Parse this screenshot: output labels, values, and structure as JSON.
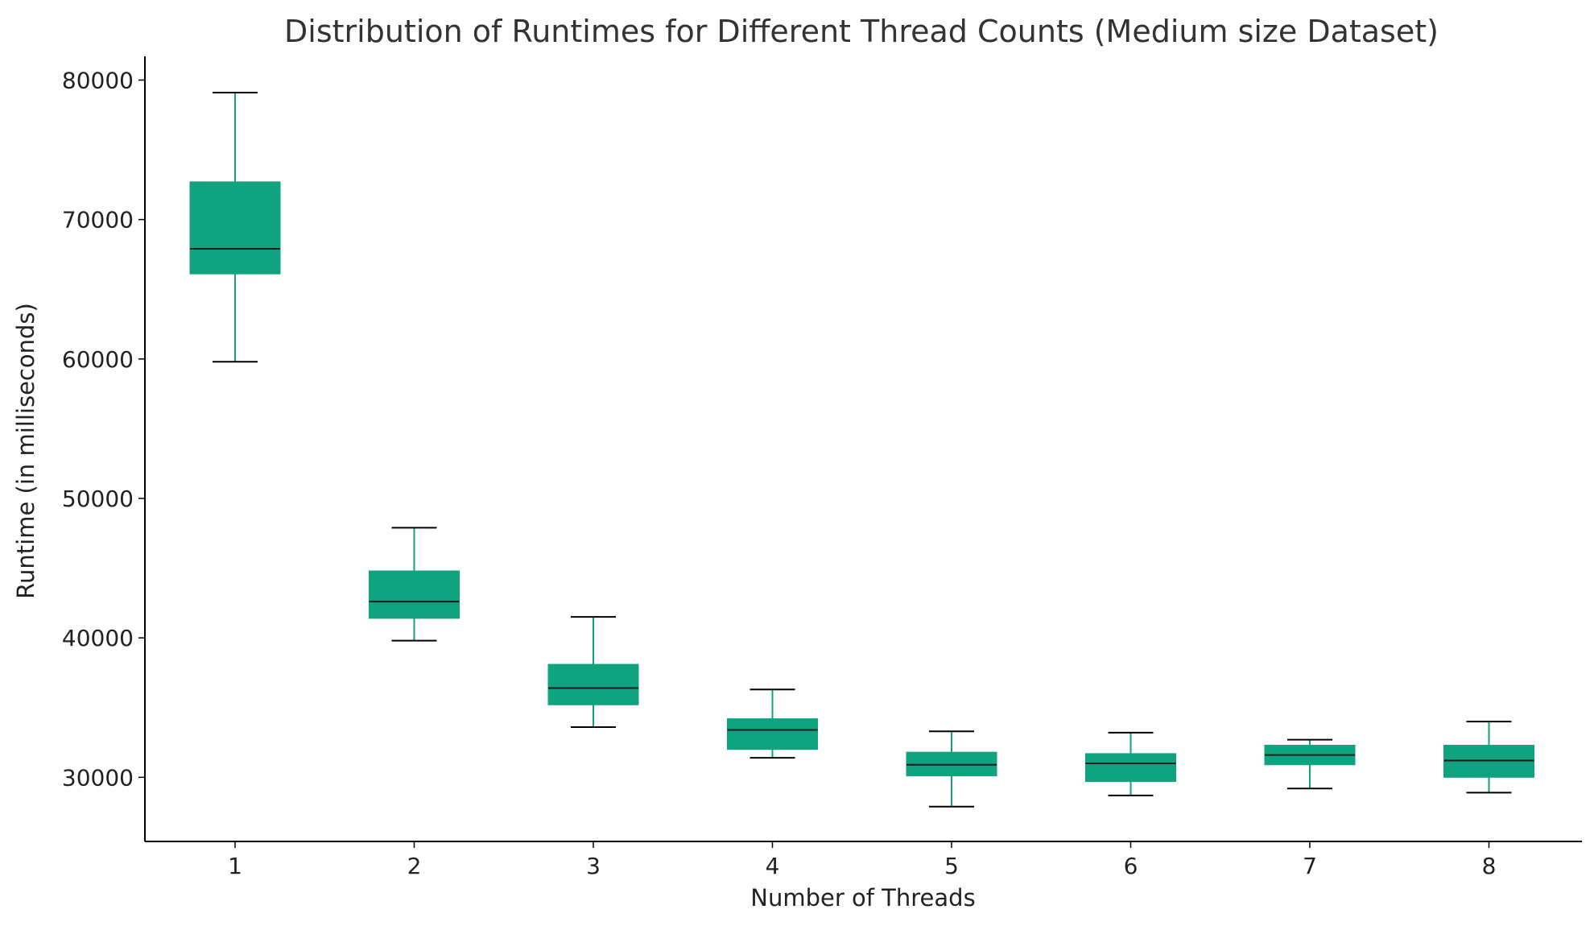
{
  "chart_data": {
    "type": "box",
    "title": "Distribution of Runtimes for Different Thread Counts (Medium size Dataset)",
    "xlabel": "Number of Threads",
    "ylabel": "Runtime (in milliseconds)",
    "ylim": [
      25400,
      81700
    ],
    "yticks": [
      30000,
      40000,
      50000,
      60000,
      70000,
      80000
    ],
    "grid": false,
    "colors": {
      "box": "#10a37f",
      "whisker": "#10a37f",
      "cap": "#000000",
      "median": "#1a1a1a"
    },
    "categories": [
      "1",
      "2",
      "3",
      "4",
      "5",
      "6",
      "7",
      "8"
    ],
    "boxes": [
      {
        "label": "1",
        "whislo": 59800,
        "q1": 66100,
        "med": 67900,
        "q3": 72700,
        "whishi": 79100
      },
      {
        "label": "2",
        "whislo": 39800,
        "q1": 41400,
        "med": 42600,
        "q3": 44800,
        "whishi": 47900
      },
      {
        "label": "3",
        "whislo": 33600,
        "q1": 35200,
        "med": 36400,
        "q3": 38100,
        "whishi": 41500
      },
      {
        "label": "4",
        "whislo": 31400,
        "q1": 32000,
        "med": 33400,
        "q3": 34200,
        "whishi": 36300
      },
      {
        "label": "5",
        "whislo": 27900,
        "q1": 30100,
        "med": 30900,
        "q3": 31800,
        "whishi": 33300
      },
      {
        "label": "6",
        "whislo": 28700,
        "q1": 29700,
        "med": 31000,
        "q3": 31700,
        "whishi": 33200
      },
      {
        "label": "7",
        "whislo": 29200,
        "q1": 30900,
        "med": 31600,
        "q3": 32300,
        "whishi": 32700
      },
      {
        "label": "8",
        "whislo": 28900,
        "q1": 30000,
        "med": 31200,
        "q3": 32300,
        "whishi": 34000
      }
    ]
  }
}
